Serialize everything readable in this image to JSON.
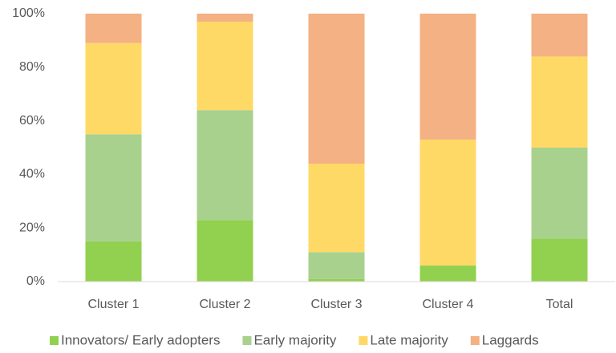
{
  "chart_data": {
    "type": "bar",
    "stacked": true,
    "categories": [
      "Cluster 1",
      "Cluster 2",
      "Cluster 3",
      "Cluster 4",
      "Total"
    ],
    "series": [
      {
        "name": "Innovators/ Early adopters",
        "color": "#92d050",
        "values": [
          15,
          23,
          1,
          6,
          16
        ]
      },
      {
        "name": "Early majority",
        "color": "#a9d18e",
        "values": [
          40,
          41,
          10,
          0,
          34
        ]
      },
      {
        "name": "Late majority",
        "color": "#ffd966",
        "values": [
          34,
          33,
          33,
          47,
          34
        ]
      },
      {
        "name": "Laggards",
        "color": "#f4b183",
        "values": [
          11,
          3,
          56,
          47,
          16
        ]
      }
    ],
    "ylim": [
      0,
      100
    ],
    "yticks": [
      {
        "value": 0,
        "label": "0%"
      },
      {
        "value": 20,
        "label": "20%"
      },
      {
        "value": 40,
        "label": "40%"
      },
      {
        "value": 60,
        "label": "60%"
      },
      {
        "value": 80,
        "label": "80%"
      },
      {
        "value": 100,
        "label": "100%"
      }
    ],
    "grid": false,
    "legend": "bottom"
  }
}
